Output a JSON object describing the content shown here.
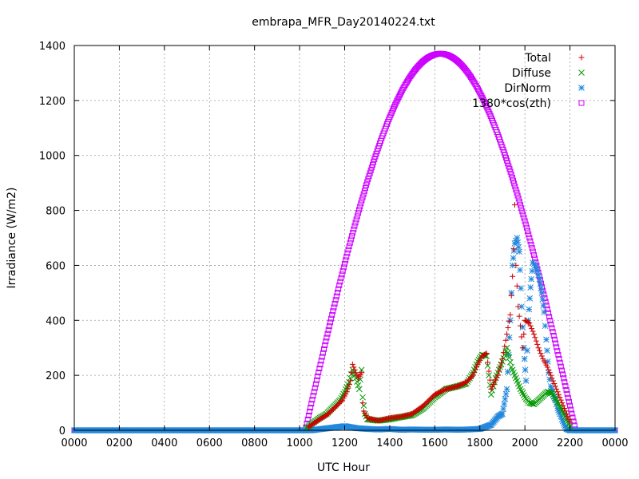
{
  "chart_data": {
    "type": "scatter",
    "title": "embrapa_MFR_Day20140224.txt",
    "xlabel": "UTC Hour",
    "ylabel": "Irradiance (W/m2)",
    "xlim": [
      0,
      24
    ],
    "ylim": [
      0,
      1400
    ],
    "x_ticks": [
      {
        "value": 0,
        "label": "0000"
      },
      {
        "value": 2,
        "label": "0200"
      },
      {
        "value": 4,
        "label": "0400"
      },
      {
        "value": 6,
        "label": "0600"
      },
      {
        "value": 8,
        "label": "0800"
      },
      {
        "value": 10,
        "label": "1000"
      },
      {
        "value": 12,
        "label": "1200"
      },
      {
        "value": 14,
        "label": "1400"
      },
      {
        "value": 16,
        "label": "1600"
      },
      {
        "value": 18,
        "label": "1800"
      },
      {
        "value": 20,
        "label": "2000"
      },
      {
        "value": 22,
        "label": "2200"
      },
      {
        "value": 24,
        "label": "0000"
      }
    ],
    "y_ticks": [
      0,
      200,
      400,
      600,
      800,
      1000,
      1200,
      1400
    ],
    "grid": true,
    "legend_position": "top-right",
    "series": [
      {
        "name": "Total",
        "marker": "plus",
        "color": "#cc0000",
        "points": [
          [
            10.4,
            12
          ],
          [
            10.8,
            35
          ],
          [
            11.2,
            55
          ],
          [
            11.6,
            85
          ],
          [
            11.9,
            110
          ],
          [
            12.1,
            140
          ],
          [
            12.25,
            180
          ],
          [
            12.35,
            240
          ],
          [
            12.5,
            210
          ],
          [
            12.6,
            190
          ],
          [
            12.75,
            210
          ],
          [
            12.8,
            100
          ],
          [
            12.85,
            70
          ],
          [
            13.0,
            45
          ],
          [
            13.5,
            35
          ],
          [
            14.0,
            45
          ],
          [
            14.5,
            50
          ],
          [
            15.0,
            60
          ],
          [
            15.5,
            90
          ],
          [
            16.0,
            130
          ],
          [
            16.5,
            150
          ],
          [
            17.0,
            160
          ],
          [
            17.4,
            175
          ],
          [
            17.7,
            200
          ],
          [
            17.9,
            240
          ],
          [
            18.1,
            270
          ],
          [
            18.3,
            280
          ],
          [
            18.5,
            150
          ],
          [
            18.8,
            200
          ],
          [
            19.0,
            260
          ],
          [
            19.2,
            350
          ],
          [
            19.35,
            420
          ],
          [
            19.45,
            560
          ],
          [
            19.5,
            660
          ],
          [
            19.55,
            820
          ],
          [
            19.6,
            600
          ],
          [
            19.7,
            450
          ],
          [
            19.8,
            380
          ],
          [
            19.9,
            300
          ],
          [
            20.0,
            400
          ],
          [
            20.2,
            390
          ],
          [
            20.4,
            350
          ],
          [
            20.6,
            300
          ],
          [
            20.8,
            260
          ],
          [
            21.0,
            230
          ],
          [
            21.2,
            190
          ],
          [
            21.4,
            150
          ],
          [
            21.6,
            110
          ],
          [
            21.8,
            70
          ],
          [
            22.0,
            30
          ]
        ]
      },
      {
        "name": "Diffuse",
        "marker": "cross",
        "color": "#009900",
        "points": [
          [
            10.3,
            8
          ],
          [
            10.6,
            28
          ],
          [
            10.9,
            45
          ],
          [
            11.2,
            60
          ],
          [
            11.5,
            85
          ],
          [
            11.8,
            110
          ],
          [
            12.0,
            140
          ],
          [
            12.2,
            175
          ],
          [
            12.35,
            220
          ],
          [
            12.5,
            190
          ],
          [
            12.65,
            150
          ],
          [
            12.75,
            220
          ],
          [
            12.8,
            120
          ],
          [
            12.9,
            60
          ],
          [
            13.0,
            40
          ],
          [
            13.5,
            35
          ],
          [
            14.0,
            40
          ],
          [
            14.5,
            48
          ],
          [
            15.0,
            55
          ],
          [
            15.5,
            80
          ],
          [
            16.0,
            120
          ],
          [
            16.5,
            150
          ],
          [
            17.0,
            160
          ],
          [
            17.4,
            170
          ],
          [
            17.7,
            210
          ],
          [
            17.9,
            250
          ],
          [
            18.1,
            275
          ],
          [
            18.3,
            270
          ],
          [
            18.5,
            130
          ],
          [
            18.7,
            190
          ],
          [
            19.0,
            250
          ],
          [
            19.2,
            300
          ],
          [
            19.4,
            230
          ],
          [
            19.6,
            190
          ],
          [
            19.8,
            150
          ],
          [
            20.0,
            120
          ],
          [
            20.2,
            100
          ],
          [
            20.4,
            95
          ],
          [
            20.6,
            110
          ],
          [
            20.8,
            125
          ],
          [
            21.0,
            140
          ],
          [
            21.2,
            135
          ],
          [
            21.4,
            110
          ],
          [
            21.6,
            80
          ],
          [
            21.8,
            50
          ],
          [
            22.0,
            15
          ]
        ]
      },
      {
        "name": "DirNorm",
        "marker": "star",
        "color": "#2288dd",
        "points": [
          [
            0,
            0
          ],
          [
            1,
            0
          ],
          [
            2,
            0
          ],
          [
            3,
            0
          ],
          [
            4,
            0
          ],
          [
            5,
            0
          ],
          [
            6,
            0
          ],
          [
            7,
            0
          ],
          [
            8,
            0
          ],
          [
            9,
            0
          ],
          [
            10,
            0
          ],
          [
            10.5,
            0
          ],
          [
            11.0,
            5
          ],
          [
            11.5,
            10
          ],
          [
            12.0,
            15
          ],
          [
            12.5,
            8
          ],
          [
            13.0,
            5
          ],
          [
            13.5,
            3
          ],
          [
            14.0,
            5
          ],
          [
            14.5,
            2
          ],
          [
            15.0,
            3
          ],
          [
            15.5,
            2
          ],
          [
            16.0,
            2
          ],
          [
            16.5,
            3
          ],
          [
            17.0,
            2
          ],
          [
            17.5,
            3
          ],
          [
            18.0,
            5
          ],
          [
            18.5,
            20
          ],
          [
            18.8,
            50
          ],
          [
            19.0,
            60
          ],
          [
            19.2,
            150
          ],
          [
            19.35,
            400
          ],
          [
            19.45,
            600
          ],
          [
            19.55,
            680
          ],
          [
            19.65,
            700
          ],
          [
            19.75,
            650
          ],
          [
            19.85,
            450
          ],
          [
            19.95,
            300
          ],
          [
            20.05,
            180
          ],
          [
            20.15,
            400
          ],
          [
            20.25,
            520
          ],
          [
            20.35,
            610
          ],
          [
            20.45,
            600
          ],
          [
            20.55,
            580
          ],
          [
            20.65,
            550
          ],
          [
            20.75,
            500
          ],
          [
            20.85,
            430
          ],
          [
            20.95,
            330
          ],
          [
            21.05,
            210
          ],
          [
            21.15,
            160
          ],
          [
            21.25,
            130
          ],
          [
            21.35,
            110
          ],
          [
            21.45,
            80
          ],
          [
            21.55,
            60
          ],
          [
            21.65,
            40
          ],
          [
            21.75,
            20
          ],
          [
            21.85,
            5
          ],
          [
            22.0,
            0
          ],
          [
            23,
            0
          ],
          [
            24,
            0
          ]
        ]
      },
      {
        "name": "1380*cos(zth)",
        "marker": "square",
        "color": "#cc00ff",
        "curve": {
          "amplitude": 1370,
          "sunrise": 10.25,
          "sunset": 22.25
        }
      }
    ]
  }
}
